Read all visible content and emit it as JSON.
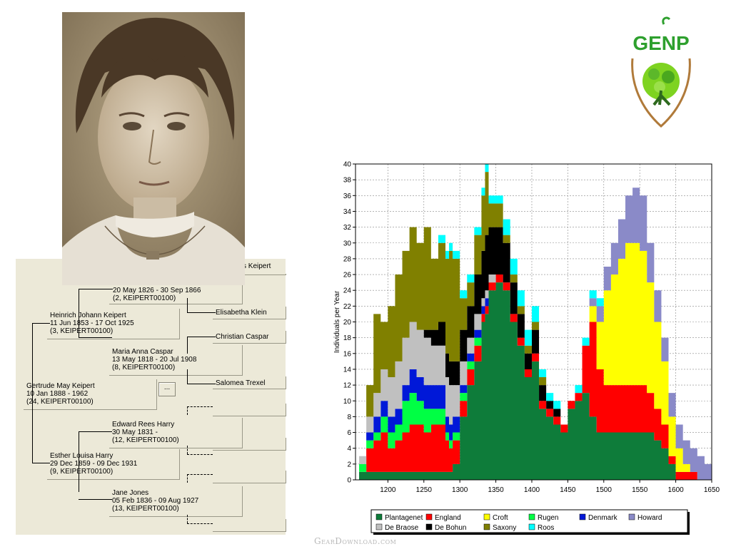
{
  "pedigree": {
    "people": [
      {
        "id": "p1",
        "name": "s Keipert",
        "dates": "",
        "ref": ""
      },
      {
        "id": "p2",
        "name": "",
        "dates": "20 May 1826 - 30 Sep 1866",
        "ref": "(2, KEIPERT00100)"
      },
      {
        "id": "p3",
        "name": "Elisabetha Klein",
        "dates": "",
        "ref": ""
      },
      {
        "id": "p4",
        "name": "Heinrich Johann Keipert",
        "dates": "11 Jun 1853 - 17 Oct 1925",
        "ref": "(3, KEIPERT00100)"
      },
      {
        "id": "p5",
        "name": "Christian Caspar",
        "dates": "",
        "ref": ""
      },
      {
        "id": "p6",
        "name": "Maria Anna Caspar",
        "dates": "13 May 1818 - 20 Jul 1908",
        "ref": "(8, KEIPERT00100)"
      },
      {
        "id": "p7",
        "name": "Salomea Trexel",
        "dates": "",
        "ref": ""
      },
      {
        "id": "p8",
        "name": "Gertrude May Keipert",
        "dates": "10 Jan 1888 -         1962",
        "ref": "(24, KEIPERT00100)"
      },
      {
        "id": "p9",
        "name": "Edward Rees Harry",
        "dates": "30 May 1831 -",
        "ref": "(12, KEIPERT00100)"
      },
      {
        "id": "p10",
        "name": "Esther Louisa Harry",
        "dates": "29 Dec 1859 - 09 Dec 1931",
        "ref": "(9, KEIPERT00100)"
      },
      {
        "id": "p11",
        "name": "Jane Jones",
        "dates": "05 Feb 1836 - 09 Aug 1927",
        "ref": "(13, KEIPERT00100)"
      }
    ],
    "more_button": "..."
  },
  "logo": {
    "text": "GENP"
  },
  "watermark": "GearDownload.com",
  "colors": {
    "Plantagenet": "#0e7c3a",
    "England": "#ff0000",
    "Croft": "#ffff00",
    "Rugen": "#00ff44",
    "Denmark": "#0018d8",
    "Howard": "#8a8ac8",
    "De Braose": "#c0c0c0",
    "De Bohun": "#000000",
    "Saxony": "#808000",
    "Roos": "#00ffff"
  },
  "chart_data": {
    "type": "area",
    "stacked": true,
    "x": [
      1155,
      1160,
      1170,
      1180,
      1190,
      1200,
      1210,
      1220,
      1230,
      1240,
      1250,
      1260,
      1270,
      1280,
      1285,
      1290,
      1300,
      1310,
      1320,
      1330,
      1335,
      1340,
      1350,
      1360,
      1370,
      1380,
      1390,
      1400,
      1410,
      1420,
      1430,
      1440,
      1450,
      1460,
      1470,
      1480,
      1490,
      1500,
      1510,
      1520,
      1530,
      1540,
      1550,
      1560,
      1570,
      1580,
      1590,
      1600,
      1610,
      1620,
      1630,
      1640,
      1650
    ],
    "series": [
      {
        "name": "Plantagenet",
        "values": [
          0,
          1,
          1,
          1,
          1,
          1,
          1,
          1,
          1,
          1,
          1,
          1,
          1,
          1,
          1,
          2,
          8,
          12,
          15,
          20,
          21,
          24,
          25,
          24,
          20,
          17,
          13,
          15,
          9,
          8,
          7,
          6,
          9,
          10,
          11,
          8,
          6,
          6,
          6,
          6,
          6,
          6,
          6,
          6,
          5,
          4,
          2,
          0,
          0,
          0,
          0,
          0,
          0
        ]
      },
      {
        "name": "England",
        "values": [
          0,
          0,
          3,
          4,
          5,
          3,
          4,
          5,
          6,
          6,
          5,
          6,
          6,
          4,
          3,
          3,
          2,
          2,
          2,
          1,
          1,
          1,
          1,
          1,
          1,
          1,
          1,
          1,
          1,
          1,
          1,
          1,
          1,
          1,
          6,
          12,
          8,
          6,
          6,
          6,
          6,
          6,
          6,
          5,
          4,
          3,
          1,
          1,
          1,
          1,
          0,
          0,
          0
        ]
      },
      {
        "name": "Croft",
        "values": [
          0,
          0,
          0,
          0,
          0,
          0,
          0,
          0,
          0,
          0,
          0,
          0,
          0,
          0,
          0,
          0,
          0,
          0,
          0,
          0,
          0,
          0,
          0,
          0,
          0,
          0,
          0,
          0,
          0,
          0,
          0,
          0,
          0,
          0,
          0,
          2,
          6,
          12,
          14,
          16,
          18,
          18,
          17,
          14,
          11,
          8,
          5,
          3,
          1,
          0,
          0,
          0,
          0
        ]
      },
      {
        "name": "Rugen",
        "values": [
          0,
          1,
          1,
          1,
          2,
          2,
          2,
          4,
          4,
          3,
          3,
          2,
          2,
          1,
          1,
          1,
          1,
          1,
          1,
          0,
          0,
          0,
          0,
          0,
          0,
          0,
          0,
          0,
          0,
          0,
          0,
          0,
          0,
          0,
          0,
          0,
          0,
          0,
          0,
          0,
          0,
          0,
          0,
          0,
          0,
          0,
          0,
          0,
          0,
          0,
          0,
          0,
          0
        ]
      },
      {
        "name": "Denmark",
        "values": [
          0,
          0,
          1,
          2,
          2,
          2,
          2,
          2,
          3,
          3,
          3,
          3,
          3,
          2,
          2,
          2,
          1,
          1,
          1,
          1,
          1,
          0,
          0,
          0,
          0,
          0,
          0,
          0,
          0,
          0,
          0,
          0,
          0,
          0,
          0,
          0,
          0,
          0,
          0,
          0,
          0,
          0,
          0,
          0,
          0,
          0,
          0,
          0,
          0,
          0,
          0,
          0,
          0
        ]
      },
      {
        "name": "Howard",
        "values": [
          0,
          0,
          0,
          0,
          0,
          0,
          0,
          0,
          0,
          0,
          0,
          0,
          0,
          0,
          0,
          0,
          0,
          0,
          0,
          0,
          0,
          0,
          0,
          0,
          0,
          0,
          0,
          0,
          0,
          0,
          0,
          0,
          0,
          0,
          0,
          1,
          2,
          3,
          4,
          5,
          6,
          7,
          7,
          5,
          4,
          3,
          3,
          3,
          3,
          3,
          3,
          2,
          0
        ]
      },
      {
        "name": "De Braose",
        "values": [
          0,
          1,
          2,
          3,
          4,
          5,
          6,
          6,
          6,
          6,
          6,
          5,
          5,
          5,
          5,
          4,
          3,
          2,
          2,
          1,
          1,
          1,
          0,
          0,
          0,
          0,
          0,
          0,
          0,
          0,
          0,
          0,
          0,
          0,
          0,
          0,
          0,
          0,
          0,
          0,
          0,
          0,
          0,
          0,
          0,
          0,
          0,
          0,
          0,
          0,
          0,
          0,
          0
        ]
      },
      {
        "name": "De Bohun",
        "values": [
          0,
          0,
          0,
          0,
          0,
          0,
          0,
          0,
          0,
          0,
          1,
          2,
          3,
          3,
          3,
          3,
          4,
          4,
          5,
          6,
          7,
          6,
          6,
          5,
          4,
          3,
          2,
          3,
          2,
          1,
          1,
          0,
          0,
          0,
          0,
          0,
          0,
          0,
          0,
          0,
          0,
          0,
          0,
          0,
          0,
          0,
          0,
          0,
          0,
          0,
          0,
          0,
          0
        ]
      },
      {
        "name": "Saxony",
        "values": [
          0,
          0,
          4,
          10,
          6,
          9,
          11,
          11,
          12,
          11,
          13,
          9,
          10,
          12,
          14,
          13,
          4,
          3,
          5,
          7,
          8,
          3,
          3,
          1,
          1,
          1,
          1,
          1,
          1,
          0,
          0,
          0,
          0,
          0,
          0,
          0,
          0,
          0,
          0,
          0,
          0,
          0,
          0,
          0,
          0,
          0,
          0,
          0,
          0,
          0,
          0,
          0,
          0
        ]
      },
      {
        "name": "Roos",
        "values": [
          0,
          0,
          0,
          0,
          0,
          0,
          0,
          0,
          0,
          0,
          0,
          0,
          1,
          1,
          1,
          1,
          1,
          1,
          1,
          1,
          1,
          1,
          1,
          2,
          2,
          2,
          2,
          2,
          1,
          1,
          1,
          0,
          0,
          1,
          1,
          1,
          1,
          0,
          0,
          0,
          0,
          0,
          0,
          0,
          0,
          0,
          0,
          0,
          0,
          0,
          0,
          0,
          0
        ]
      }
    ],
    "xlabel": "",
    "ylabel": "Individuals per Year",
    "xlim": [
      1155,
      1650
    ],
    "ylim": [
      0,
      40
    ],
    "xticks": [
      1200,
      1250,
      1300,
      1350,
      1400,
      1450,
      1500,
      1550,
      1600,
      1650
    ],
    "yticks": [
      0,
      2,
      4,
      6,
      8,
      10,
      12,
      14,
      16,
      18,
      20,
      22,
      24,
      26,
      28,
      30,
      32,
      34,
      36,
      38,
      40
    ],
    "grid": true,
    "legend": "bottom",
    "legend_order": [
      "Plantagenet",
      "England",
      "Croft",
      "Rugen",
      "Denmark",
      "Howard",
      "De Braose",
      "De Bohun",
      "Saxony",
      "Roos"
    ]
  }
}
